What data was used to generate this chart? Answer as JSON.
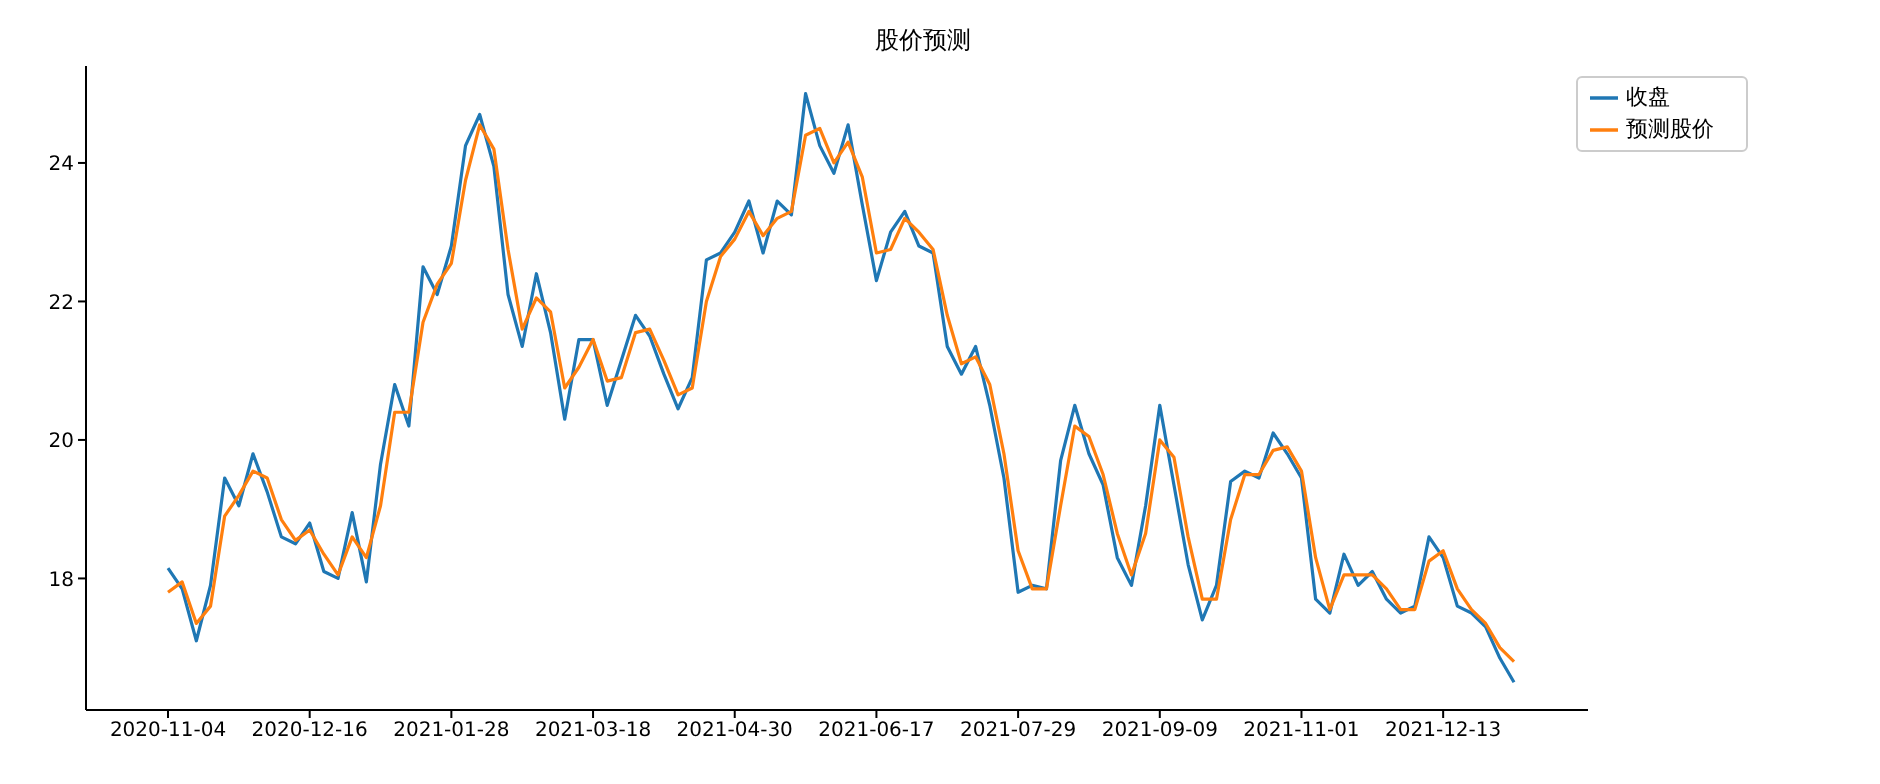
{
  "chart_data": {
    "type": "line",
    "title": "股价预测",
    "categories": [
      "2020-11-04",
      null,
      null,
      null,
      null,
      null,
      null,
      null,
      null,
      null,
      "2020-12-16",
      null,
      null,
      null,
      null,
      null,
      null,
      null,
      null,
      null,
      "2021-01-28",
      null,
      null,
      null,
      null,
      null,
      null,
      null,
      null,
      null,
      "2021-03-18",
      null,
      null,
      null,
      null,
      null,
      null,
      null,
      null,
      null,
      "2021-04-30",
      null,
      null,
      null,
      null,
      null,
      null,
      null,
      null,
      null,
      "2021-06-17",
      null,
      null,
      null,
      null,
      null,
      null,
      null,
      null,
      null,
      "2021-07-29",
      null,
      null,
      null,
      null,
      null,
      null,
      null,
      null,
      null,
      "2021-09-09",
      null,
      null,
      null,
      null,
      null,
      null,
      null,
      null,
      null,
      "2021-11-01",
      null,
      null,
      null,
      null,
      null,
      null,
      null,
      null,
      null,
      "2021-12-13",
      null,
      null,
      null,
      null,
      null
    ],
    "series": [
      {
        "name": "收盘",
        "color": "#1f77b4",
        "values": [
          18.15,
          17.85,
          17.1,
          17.9,
          19.45,
          19.05,
          19.8,
          19.25,
          18.6,
          18.5,
          18.8,
          18.1,
          18.0,
          18.95,
          17.95,
          19.65,
          20.8,
          20.2,
          22.5,
          22.1,
          22.8,
          24.25,
          24.7,
          23.95,
          22.1,
          21.35,
          22.4,
          21.55,
          20.3,
          21.45,
          21.45,
          20.5,
          21.15,
          21.8,
          21.5,
          20.95,
          20.45,
          20.9,
          22.6,
          22.7,
          23.0,
          23.45,
          22.7,
          23.45,
          23.25,
          25.0,
          24.25,
          23.85,
          24.55,
          23.4,
          22.3,
          23.0,
          23.3,
          22.8,
          22.7,
          21.35,
          20.95,
          21.35,
          20.5,
          19.45,
          17.8,
          17.9,
          17.85,
          19.7,
          20.5,
          19.8,
          19.35,
          18.3,
          17.9,
          19.05,
          20.5,
          19.35,
          18.2,
          17.4,
          17.9,
          19.4,
          19.55,
          19.45,
          20.1,
          19.8,
          19.45,
          17.7,
          17.5,
          18.35,
          17.9,
          18.1,
          17.7,
          17.5,
          17.6,
          18.6,
          18.3,
          17.6,
          17.5,
          17.3,
          16.85,
          16.5
        ]
      },
      {
        "name": "预测股价",
        "color": "#ff7f0e",
        "values": [
          17.8,
          17.95,
          17.35,
          17.6,
          18.9,
          19.2,
          19.55,
          19.45,
          18.85,
          18.55,
          18.7,
          18.35,
          18.05,
          18.6,
          18.3,
          19.05,
          20.4,
          20.4,
          21.7,
          22.25,
          22.55,
          23.75,
          24.55,
          24.2,
          22.75,
          21.6,
          22.05,
          21.85,
          20.75,
          21.05,
          21.45,
          20.85,
          20.9,
          21.55,
          21.6,
          21.15,
          20.65,
          20.75,
          22.0,
          22.65,
          22.9,
          23.3,
          22.95,
          23.2,
          23.3,
          24.4,
          24.5,
          24.0,
          24.3,
          23.8,
          22.7,
          22.75,
          23.2,
          23.0,
          22.75,
          21.8,
          21.1,
          21.2,
          20.8,
          19.8,
          18.4,
          17.85,
          17.85,
          19.05,
          20.2,
          20.05,
          19.5,
          18.65,
          18.05,
          18.65,
          20.0,
          19.75,
          18.6,
          17.7,
          17.7,
          18.85,
          19.5,
          19.5,
          19.85,
          19.9,
          19.55,
          18.3,
          17.55,
          18.05,
          18.05,
          18.05,
          17.85,
          17.55,
          17.55,
          18.25,
          18.4,
          17.85,
          17.55,
          17.35,
          17.0,
          16.8
        ]
      }
    ],
    "ylim": [
      16.1,
      25.4
    ],
    "yticks": [
      18,
      20,
      22,
      24
    ],
    "grid": false,
    "legend": "top right",
    "marker": "none",
    "line_style": "solid"
  }
}
